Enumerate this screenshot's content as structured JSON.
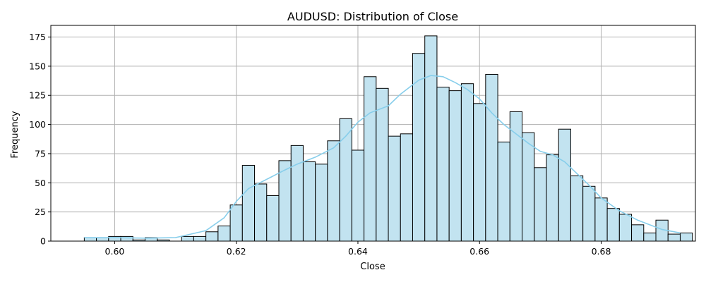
{
  "chart_data": {
    "type": "bar",
    "title": "AUDUSD: Distribution of Close",
    "xlabel": "Close",
    "ylabel": "Frequency",
    "xlim": [
      0.5895,
      0.9955
    ],
    "ylim": [
      0,
      185
    ],
    "xticks": [
      "0.60",
      "0.62",
      "0.64",
      "0.66",
      "0.68"
    ],
    "xtick_values": [
      0.6,
      0.62,
      0.64,
      0.66,
      0.68
    ],
    "yticks": [
      "0",
      "25",
      "50",
      "75",
      "100",
      "125",
      "150",
      "175"
    ],
    "ytick_values": [
      0,
      25,
      50,
      75,
      100,
      125,
      150,
      175
    ],
    "grid": true,
    "bin_start": 0.595,
    "bin_width": 0.002,
    "values": [
      3,
      3,
      4,
      4,
      1,
      3,
      1,
      0,
      4,
      4,
      8,
      13,
      31,
      65,
      49,
      39,
      69,
      82,
      68,
      66,
      86,
      105,
      78,
      141,
      131,
      90,
      92,
      161,
      176,
      132,
      129,
      135,
      118,
      143,
      85,
      111,
      93,
      63,
      74,
      96,
      56,
      47,
      37,
      28,
      23,
      14,
      7,
      18,
      6,
      7
    ],
    "bar_color": "#c2e3f0",
    "edge_color": "#000000",
    "kde_color": "#87ceeb",
    "kde": {
      "x": [
        0.595,
        0.6,
        0.605,
        0.61,
        0.615,
        0.618,
        0.62,
        0.622,
        0.625,
        0.628,
        0.63,
        0.633,
        0.636,
        0.638,
        0.64,
        0.642,
        0.645,
        0.647,
        0.65,
        0.652,
        0.654,
        0.656,
        0.658,
        0.66,
        0.662,
        0.664,
        0.666,
        0.668,
        0.67,
        0.672,
        0.674,
        0.676,
        0.678,
        0.68,
        0.683,
        0.686,
        0.69,
        0.693
      ],
      "y": [
        3,
        3,
        2.5,
        3,
        9,
        20,
        34,
        45,
        53,
        61,
        66,
        72,
        80,
        90,
        102,
        110,
        116,
        126,
        138,
        142,
        141,
        136,
        130,
        122,
        110,
        100,
        92,
        84,
        77,
        74,
        68,
        58,
        48,
        37,
        26,
        18,
        10,
        7
      ]
    }
  }
}
